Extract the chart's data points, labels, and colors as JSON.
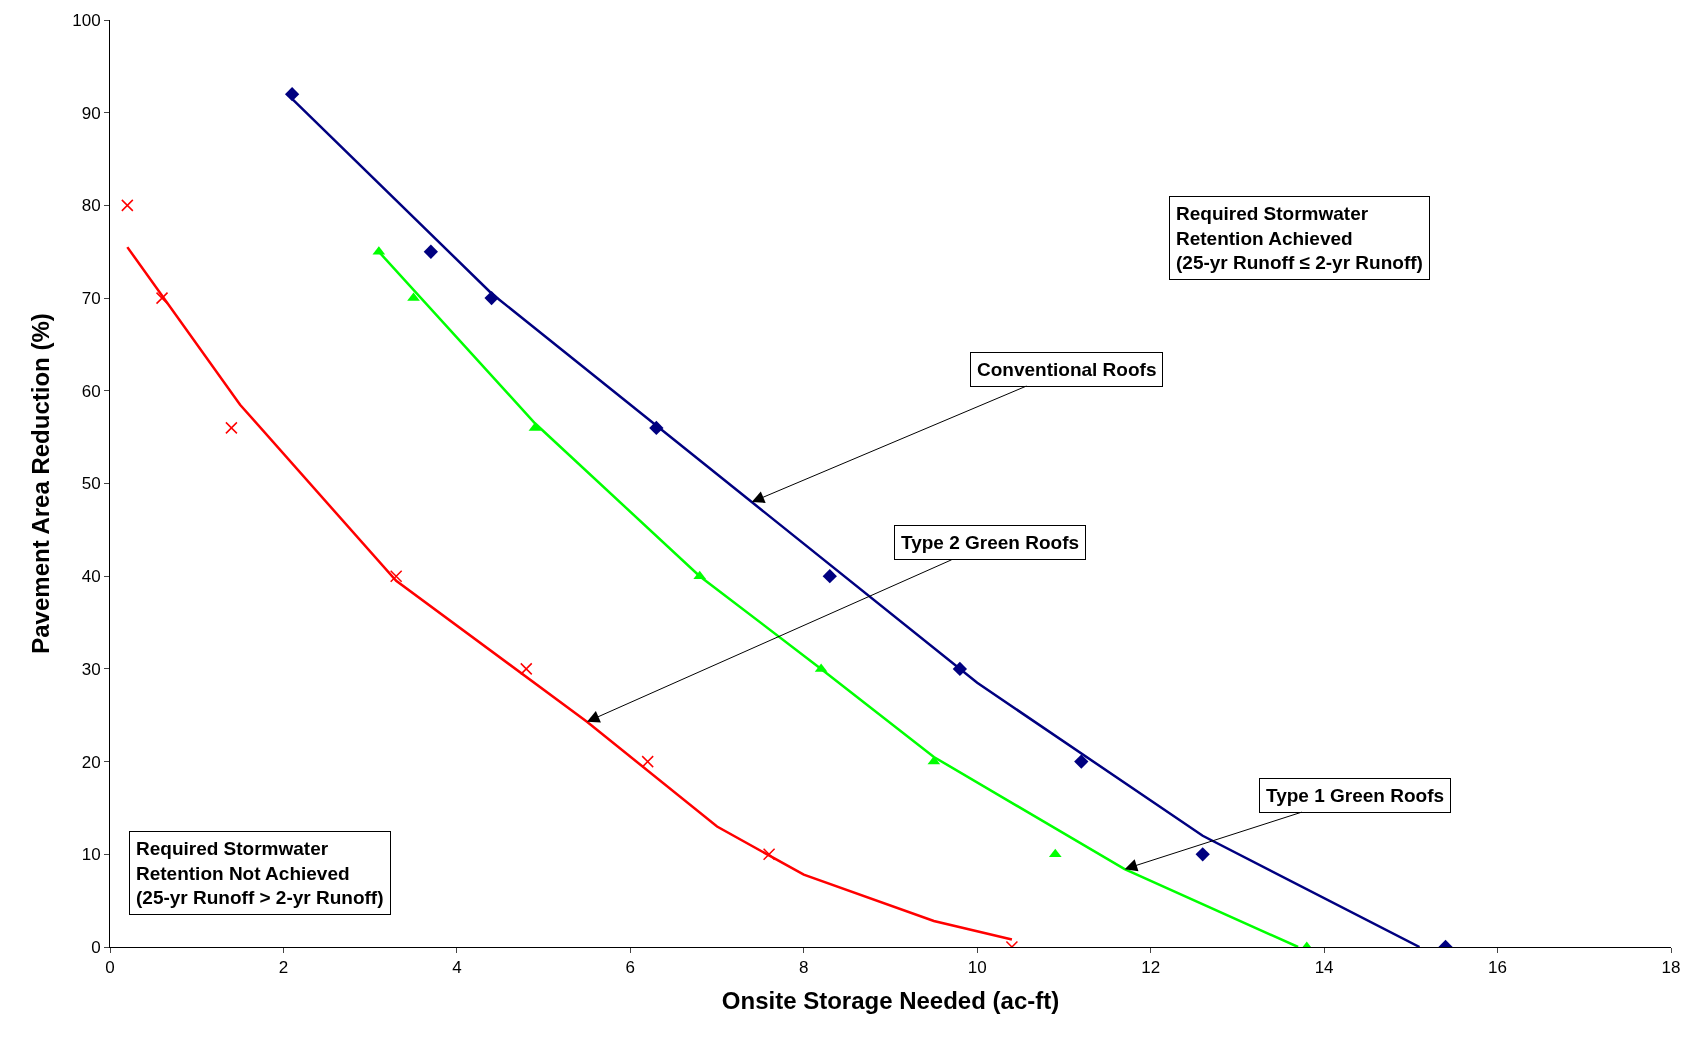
{
  "chart_data": {
    "type": "scatter",
    "xlabel": "Onsite Storage Needed (ac-ft)",
    "ylabel": "Pavement Area Reduction (%)",
    "xlim": [
      0,
      18
    ],
    "xticks": [
      0,
      2,
      4,
      6,
      8,
      10,
      12,
      14,
      16,
      18
    ],
    "ylim": [
      0,
      100
    ],
    "yticks": [
      0,
      10,
      20,
      30,
      40,
      50,
      60,
      70,
      80,
      90,
      100
    ],
    "series": [
      {
        "marker": "diamond",
        "color": "#000080",
        "x": [
          2.1,
          3.7,
          4.4,
          6.3,
          8.3,
          9.8,
          11.2,
          12.6,
          15.4
        ],
        "values": [
          92,
          75,
          70,
          56,
          40,
          30,
          20,
          10,
          0
        ]
      },
      {
        "marker": "triangle",
        "color": "#00ff00",
        "x": [
          3.1,
          3.5,
          4.9,
          6.8,
          8.2,
          9.5,
          10.9,
          13.8
        ],
        "values": [
          75,
          70,
          56,
          40,
          30,
          20,
          10,
          0
        ]
      },
      {
        "marker": "cross",
        "color": "#ff0000",
        "x": [
          0.2,
          0.6,
          1.4,
          3.3,
          4.8,
          6.2,
          7.6,
          10.4
        ],
        "values": [
          80,
          70,
          56,
          40,
          30,
          20,
          10,
          0
        ]
      },
      {
        "type": "line",
        "marker": "none",
        "color": "#000080",
        "x": [
          2.1,
          4.4,
          7.4,
          10,
          12.6,
          15.1
        ],
        "values": [
          91.5,
          70.5,
          48,
          28.5,
          12,
          0
        ]
      },
      {
        "type": "line",
        "marker": "none",
        "color": "#00ff00",
        "x": [
          3.1,
          4.9,
          6.8,
          8.2,
          9.5,
          11.7,
          13.7
        ],
        "values": [
          75,
          56.5,
          40,
          30,
          20.5,
          8.4,
          0
        ]
      },
      {
        "type": "line",
        "marker": "none",
        "color": "#ff0000",
        "x": [
          0.2,
          1.5,
          3.3,
          5.5,
          7,
          8,
          9.5,
          10.4
        ],
        "values": [
          75.5,
          58.5,
          39.5,
          24.3,
          13,
          7.8,
          2.8,
          0.8
        ]
      }
    ],
    "annotations": [
      {
        "text": "Conventional Roofs",
        "x": 7.4,
        "y": 48
      },
      {
        "text": "Type 2 Green Roofs",
        "x": 5.5,
        "y": 24.3
      },
      {
        "text": "Type 1 Green Roofs",
        "x": 11.7,
        "y": 8.4
      },
      "Required Stormwater\nRetention Achieved\n(25-yr Runoff ≤ 2-yr Runoff)",
      "Required Stormwater\nRetention Not Achieved\n(25-yr Runoff > 2-yr Runoff)"
    ]
  }
}
